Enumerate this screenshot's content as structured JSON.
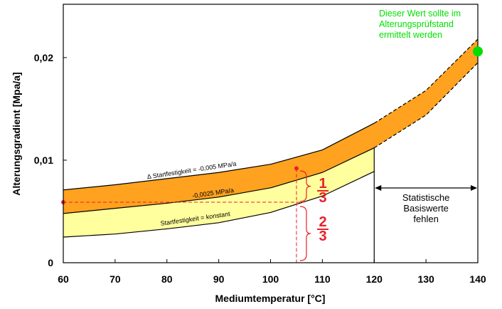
{
  "chart_data": {
    "type": "area",
    "xlabel": "Mediumtemperatur [°C]",
    "ylabel": "Alterungsgradient [Mpa/a]",
    "xlim": [
      60,
      140
    ],
    "ylim": [
      0,
      0.0252
    ],
    "x_ticks": [
      60,
      70,
      80,
      90,
      100,
      110,
      120,
      130,
      140
    ],
    "x_tick_labels": [
      "60",
      "70",
      "80",
      "90",
      "100",
      "110",
      "120",
      "130",
      "140"
    ],
    "y_ticks": [
      0,
      0.01,
      0.02
    ],
    "y_tick_labels": [
      "0",
      "0,01",
      "0,02"
    ],
    "grid": false,
    "colors": {
      "band_outer": "#ffa21f",
      "band_inner": "#ffff9e",
      "marker": "#e8202a",
      "note": "#00e000"
    },
    "series": [
      {
        "name": "Δ Startfestigkeit = -0,005 MPa/a",
        "x": [
          60,
          70,
          80,
          90,
          100,
          110,
          120
        ],
        "y": [
          0.0071,
          0.0076,
          0.0082,
          0.0088,
          0.0096,
          0.011,
          0.0136
        ]
      },
      {
        "name": "-0,0025 MPa/a",
        "x": [
          60,
          70,
          80,
          90,
          100,
          110,
          120
        ],
        "y": [
          0.0048,
          0.0053,
          0.0058,
          0.0064,
          0.0073,
          0.0088,
          0.0112
        ]
      },
      {
        "name": "Startfestigkeit = konstant",
        "x": [
          60,
          70,
          80,
          90,
          100,
          110,
          120
        ],
        "y": [
          0.0025,
          0.0028,
          0.0033,
          0.0039,
          0.0049,
          0.0065,
          0.0089
        ]
      }
    ],
    "extrapolated_band": {
      "x": [
        120,
        130,
        140
      ],
      "upper": [
        0.0136,
        0.0168,
        0.0218
      ],
      "lower": [
        0.0112,
        0.0144,
        0.0195
      ]
    },
    "highlight_point": {
      "x": 140,
      "y": 0.0206,
      "label": "Dieser Wert sollte im Alterungsprüfstand ermittelt werden"
    },
    "reference_points": [
      {
        "x": 60,
        "y": 0.0059
      },
      {
        "x": 105,
        "y": 0.0092
      }
    ],
    "reference_x": 105,
    "markers": [
      {
        "label": "1",
        "part": "upper"
      },
      {
        "label": "3",
        "part": "upper"
      },
      {
        "label": "2",
        "part": "lower"
      },
      {
        "label": "3",
        "part": "lower"
      }
    ],
    "missing_data_range": {
      "x": [
        120,
        140
      ],
      "text": [
        "Statistische",
        "Basiswerte",
        "fehlen"
      ]
    }
  }
}
